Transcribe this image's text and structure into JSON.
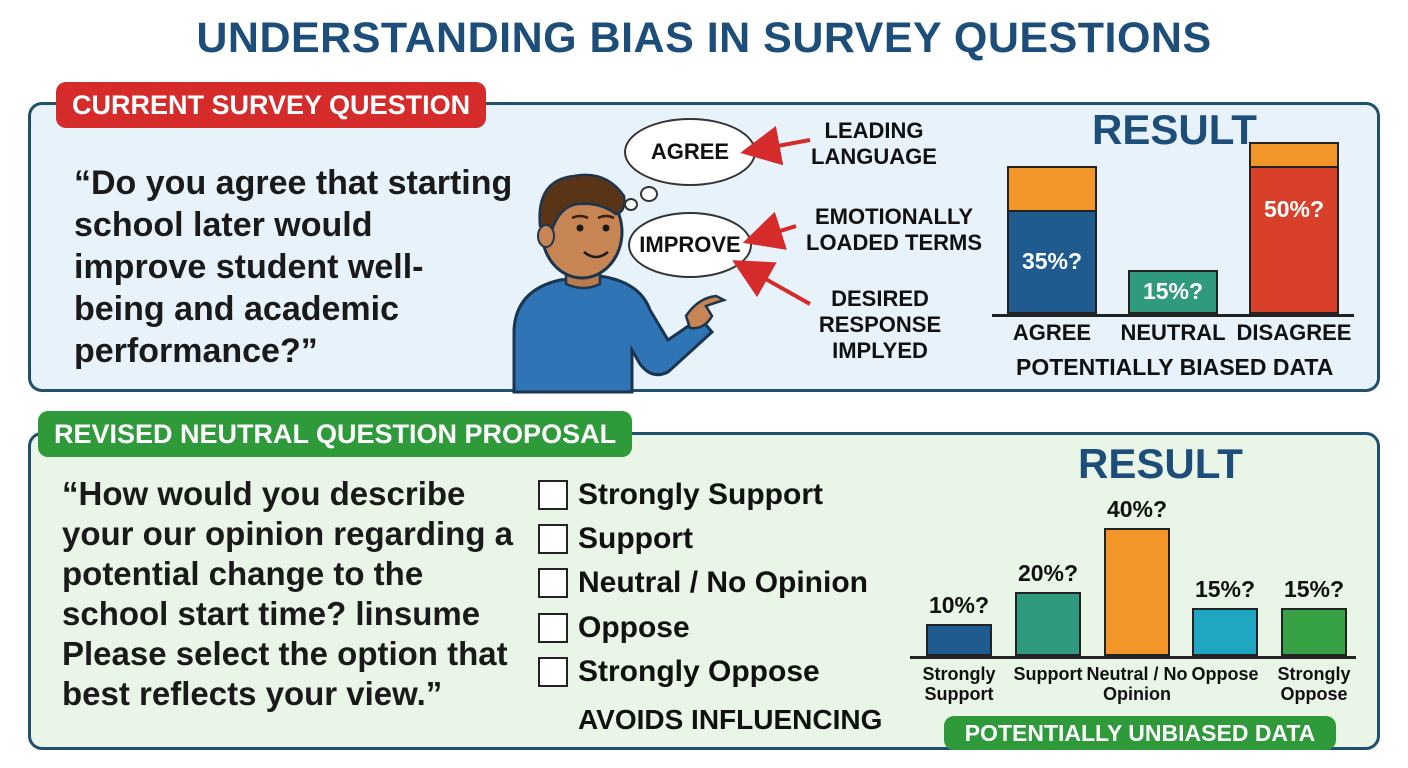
{
  "title": "UNDERSTANDING BIAS IN SURVEY QUESTIONS",
  "current": {
    "label": "CURRENT SURVEY QUESTION",
    "question": "“Do you agree that starting school later would improve student well-being and academic performance?”",
    "clouds": [
      "AGREE",
      "IMPROVE"
    ],
    "annotations": [
      "LEADING LANGUAGE",
      "EMOTIONALLY LOADED TERMS",
      "DESIRED RESPONSE IMPLYED"
    ],
    "result_title": "RESULT",
    "caption": "POTENTIALLY BIASED DATA"
  },
  "revised": {
    "label": "REVISED NEUTRAL QUESTION PROPOSAL",
    "question": "“How would you describe your our opinion regarding a potential change to the school start time? linsume Please select the option that best reflects your view.”",
    "options": [
      "Strongly Support",
      "Support",
      "Neutral / No Opinion",
      "Oppose",
      "Strongly Oppose"
    ],
    "avoids": "AVOIDS INFLUENCING",
    "result_title": "RESULT",
    "caption": "POTENTIALLY UNBIASED DATA"
  },
  "chart_data": [
    {
      "type": "bar",
      "title": "RESULT",
      "categories": [
        "AGREE",
        "NEUTRAL",
        "DISAGREE"
      ],
      "values": [
        35,
        15,
        50
      ],
      "value_labels": [
        "35%?",
        "15%?",
        "50%?"
      ],
      "stacked_extra": [
        15,
        0,
        8
      ],
      "colors": [
        "#1f5b8f",
        "#2f9a7e",
        "#d8402a"
      ],
      "extra_color": "#f3962a",
      "caption": "POTENTIALLY BIASED DATA"
    },
    {
      "type": "bar",
      "title": "RESULT",
      "categories": [
        "Strongly Support",
        "Support",
        "Neutral / No Opinion",
        "Oppose",
        "Strongly Oppose"
      ],
      "values": [
        10,
        20,
        40,
        15,
        15
      ],
      "value_labels": [
        "10%?",
        "20%?",
        "40%?",
        "15%?",
        "15%?"
      ],
      "colors": [
        "#1f5b8f",
        "#2f9a7e",
        "#f3962a",
        "#1fa6c2",
        "#36a145"
      ],
      "caption": "POTENTIALLY UNBIASED DATA"
    }
  ]
}
